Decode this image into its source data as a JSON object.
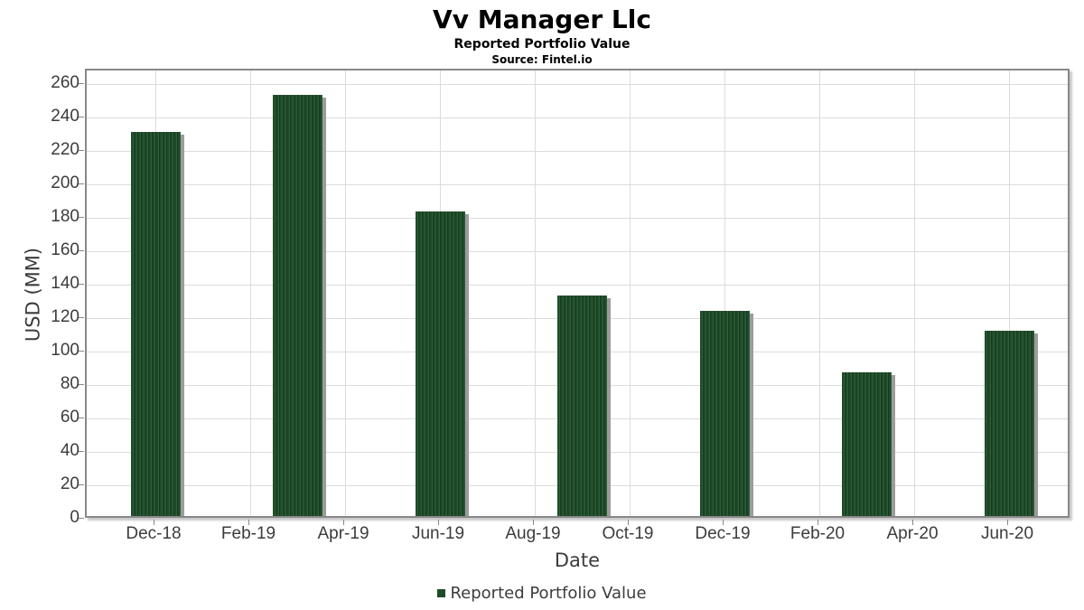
{
  "header": {
    "title": "Vv Manager Llc",
    "subtitle": "Reported Portfolio Value",
    "source": "Source: Fintel.io"
  },
  "legend": {
    "label": "Reported Portfolio Value",
    "swatch_color": "#1e4b29"
  },
  "colors": {
    "bar_green_dark": "#17391f",
    "bar_green_base": "#1e4b29",
    "bar_green_light": "#2f6038",
    "bar_shadow": "#9c9c9c",
    "gridline": "#dcdcdc",
    "frame": "#888888",
    "tick_text": "#3c3c3c"
  },
  "chart_data": {
    "type": "bar",
    "title": "Vv Manager Llc",
    "subtitle": "Reported Portfolio Value",
    "source": "Source: Fintel.io",
    "xlabel": "Date",
    "ylabel": "USD (MM)",
    "legend_entries": [
      "Reported Portfolio Value"
    ],
    "legend_position": "bottom",
    "grid": true,
    "ylim": [
      0,
      268.5
    ],
    "y_ticks": [
      0,
      20,
      40,
      60,
      80,
      100,
      120,
      140,
      160,
      180,
      200,
      220,
      240,
      260
    ],
    "x_ticks": [
      {
        "label": "Dec-18",
        "month": 0
      },
      {
        "label": "Feb-19",
        "month": 2
      },
      {
        "label": "Apr-19",
        "month": 4
      },
      {
        "label": "Jun-19",
        "month": 6
      },
      {
        "label": "Aug-19",
        "month": 8
      },
      {
        "label": "Oct-19",
        "month": 10
      },
      {
        "label": "Dec-19",
        "month": 12
      },
      {
        "label": "Feb-20",
        "month": 14
      },
      {
        "label": "Apr-20",
        "month": 16
      },
      {
        "label": "Jun-20",
        "month": 18
      }
    ],
    "series": [
      {
        "name": "Reported Portfolio Value",
        "points": [
          {
            "date": "Dec-18",
            "month": 0,
            "value": 232
          },
          {
            "date": "Mar-19",
            "month": 3,
            "value": 254
          },
          {
            "date": "Jun-19",
            "month": 6,
            "value": 184
          },
          {
            "date": "Sep-19",
            "month": 9,
            "value": 134
          },
          {
            "date": "Dec-19",
            "month": 12,
            "value": 125
          },
          {
            "date": "Mar-20",
            "month": 15,
            "value": 88
          },
          {
            "date": "Jun-20",
            "month": 18,
            "value": 113
          }
        ]
      }
    ]
  }
}
